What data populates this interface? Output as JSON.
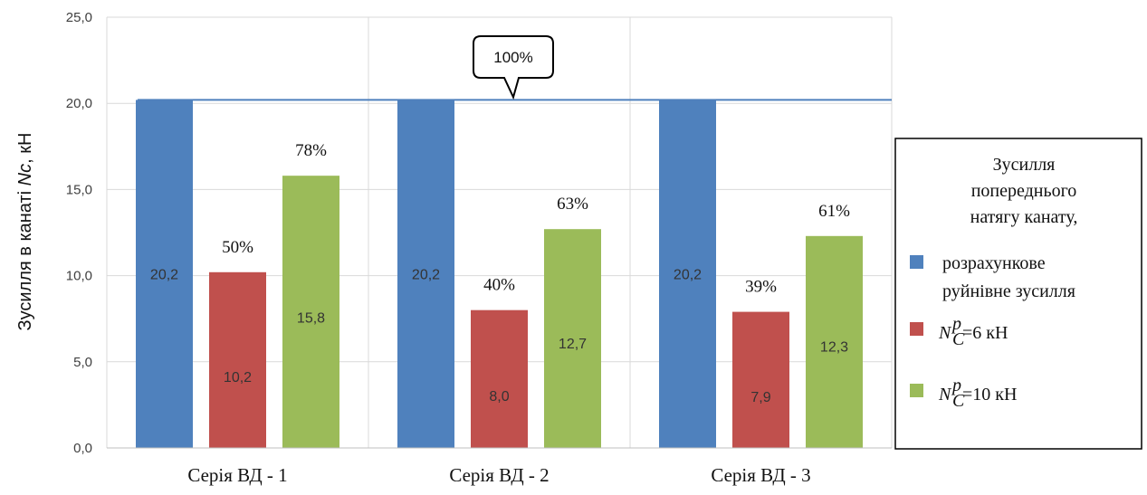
{
  "chart_data": {
    "type": "bar",
    "ylabel_prefix": "Зусилля в канаті ",
    "ylabel_var": "Nc",
    "ylabel_suffix": ", кН",
    "ylim": [
      0,
      25
    ],
    "y_ticks": [
      "0,0",
      "5,0",
      "10,0",
      "15,0",
      "20,0",
      "25,0"
    ],
    "y_tick_values": [
      0,
      5,
      10,
      15,
      20,
      25
    ],
    "categories": [
      "Серія ВД - 1",
      "Серія ВД - 2",
      "Серія  ВД - 3"
    ],
    "series": [
      {
        "key": "design",
        "color": "#4f81bd",
        "values": [
          20.2,
          20.2,
          20.2
        ],
        "value_labels": [
          "20,2",
          "20,2",
          "20,2"
        ],
        "pct_labels": [
          "",
          "",
          ""
        ]
      },
      {
        "key": "nc6",
        "color": "#c0504d",
        "values": [
          10.2,
          8.0,
          7.9
        ],
        "value_labels": [
          "10,2",
          "8,0",
          "7,9"
        ],
        "pct_labels": [
          "50%",
          "40%",
          "39%"
        ]
      },
      {
        "key": "nc10",
        "color": "#9bbb59",
        "values": [
          15.8,
          12.7,
          12.3
        ],
        "value_labels": [
          "15,8",
          "12,7",
          "12,3"
        ],
        "pct_labels": [
          "78%",
          "63%",
          "61%"
        ]
      }
    ],
    "reference_line": {
      "value": 20.2,
      "color": "#4f81bd",
      "callout": "100%"
    },
    "grid": true,
    "legend": {
      "placement": "right",
      "title_lines": [
        "Зусилля",
        "попереднього",
        "натягу канату,"
      ],
      "items": [
        {
          "series": "design",
          "lines": [
            "розрахункове",
            "руйнівне зусилля"
          ]
        },
        {
          "series": "nc6",
          "var": "N",
          "sub": "C",
          "sup": "p",
          "rest": " =6 кН"
        },
        {
          "series": "nc10",
          "var": "N",
          "sub": "C",
          "sup": "p",
          "rest": " =10 кН"
        }
      ]
    }
  }
}
